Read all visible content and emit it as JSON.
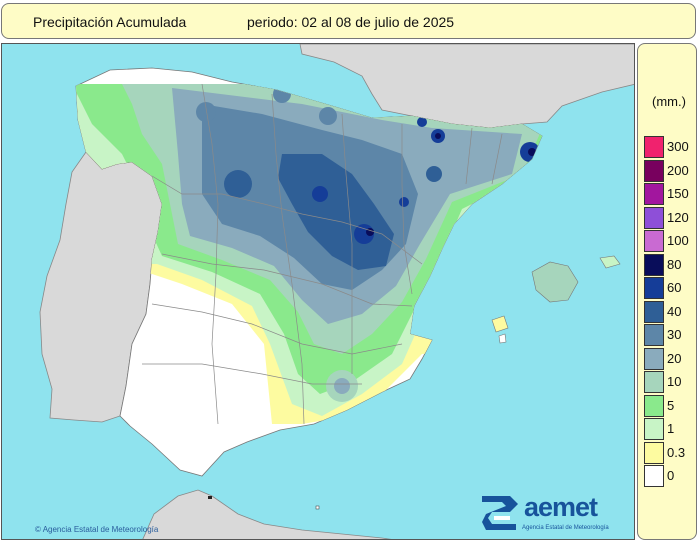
{
  "header": {
    "title": "Precipitación Acumulada",
    "period": "periodo: 02 al 08 de julio de 2025"
  },
  "legend": {
    "unit": "(mm.)",
    "classes": [
      {
        "label": "300",
        "color": "#f0226e"
      },
      {
        "label": "200",
        "color": "#78005e"
      },
      {
        "label": "150",
        "color": "#a2169e"
      },
      {
        "label": "120",
        "color": "#8e4fd8"
      },
      {
        "label": "100",
        "color": "#c96ad2"
      },
      {
        "label": "80",
        "color": "#090d5a"
      },
      {
        "label": "60",
        "color": "#153d98"
      },
      {
        "label": "40",
        "color": "#2f5f96"
      },
      {
        "label": "30",
        "color": "#5d86a8"
      },
      {
        "label": "20",
        "color": "#8aabbd"
      },
      {
        "label": "10",
        "color": "#a6d5bc"
      },
      {
        "label": "5",
        "color": "#8ae98c"
      },
      {
        "label": "1",
        "color": "#c8f4c6"
      },
      {
        "label": "0.3",
        "color": "#fdfba0"
      },
      {
        "label": "0",
        "color": "#ffffff"
      }
    ]
  },
  "footer": {
    "copyright": "Agencia Estatal de Meteorología",
    "copyright_symbol": "©"
  },
  "logo": {
    "name": "aemet",
    "subtitle": "Agencia Estatal de Meteorología",
    "icon": "aemet-spiral-icon"
  },
  "map_colors": {
    "sea": "#8fe3ee",
    "foreign_land": "#d9d9d9",
    "province_lines": "#8a8a8a"
  }
}
